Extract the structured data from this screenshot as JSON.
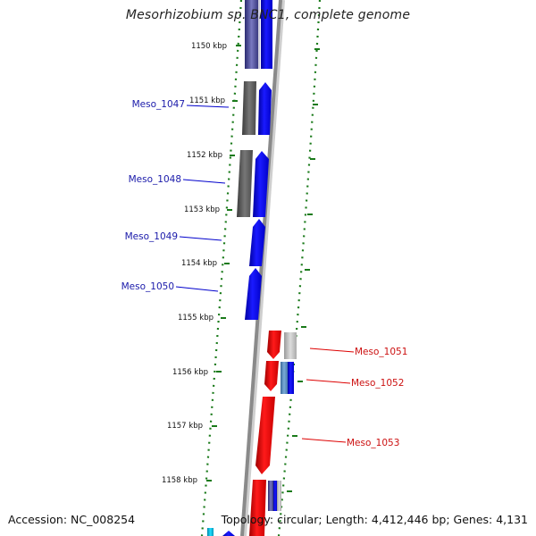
{
  "title": "Mesorhizobium sp. BNC1, complete genome",
  "footer": {
    "accession": "Accession: NC_008254",
    "topology": "Topology: circular; Length: 4,412,446 bp; Genes: 4,131"
  },
  "colors": {
    "backbone": "#8a8a8a",
    "forward_cds": "#0000ee",
    "reverse_cds": "#ee0000",
    "gray_feature": "#5a5a5a",
    "light_feature": "#bdbdbd",
    "tick": "#1a7a1a",
    "forward_label": "#1a1aaa",
    "reverse_label": "#cc1111"
  },
  "ticks": [
    {
      "label": "1150 kbp"
    },
    {
      "label": "1151 kbp"
    },
    {
      "label": "1152 kbp"
    },
    {
      "label": "1153 kbp"
    },
    {
      "label": "1154 kbp"
    },
    {
      "label": "1155 kbp"
    },
    {
      "label": "1156 kbp"
    },
    {
      "label": "1157 kbp"
    },
    {
      "label": "1158 kbp"
    }
  ],
  "genes": [
    {
      "label": "Meso_1047",
      "strand": "forward"
    },
    {
      "label": "Meso_1048",
      "strand": "forward"
    },
    {
      "label": "Meso_1049",
      "strand": "forward"
    },
    {
      "label": "Meso_1050",
      "strand": "forward"
    },
    {
      "label": "Meso_1051",
      "strand": "reverse"
    },
    {
      "label": "Meso_1052",
      "strand": "reverse"
    },
    {
      "label": "Meso_1053",
      "strand": "reverse"
    }
  ]
}
